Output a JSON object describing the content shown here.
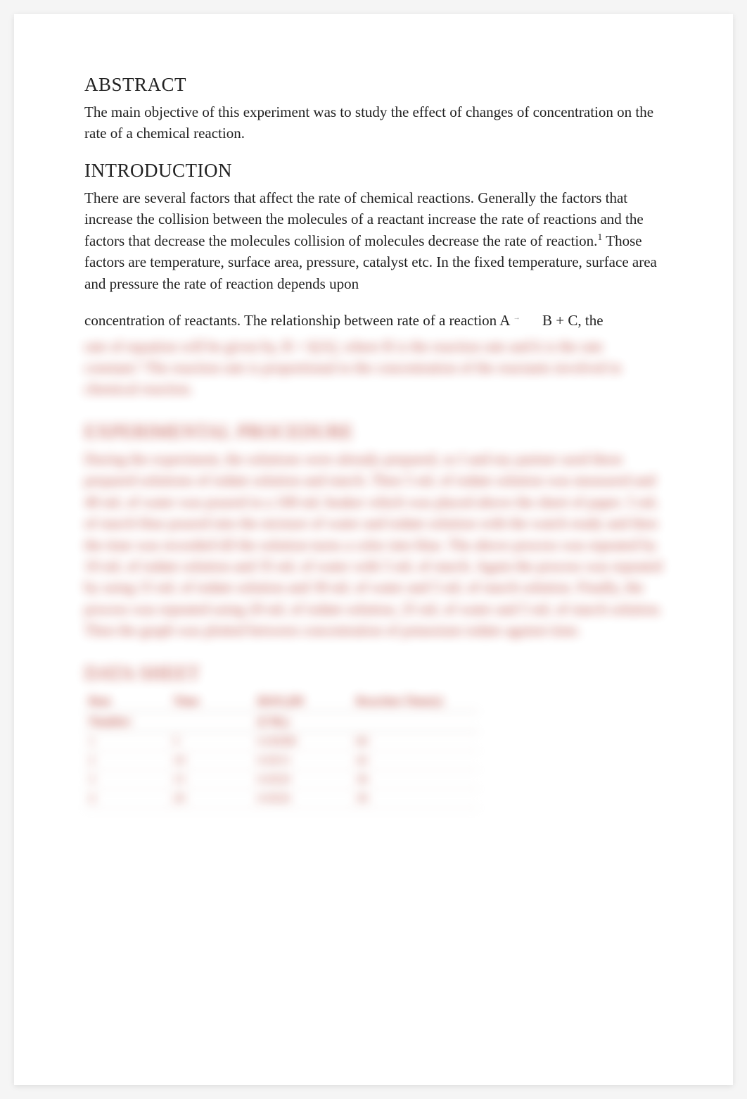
{
  "sections": {
    "abstract": {
      "heading": "ABSTRACT",
      "body": "The main objective of this experiment was to study the effect of changes of concentration on the rate of a chemical reaction."
    },
    "introduction": {
      "heading": "INTRODUCTION",
      "body_part1": "There are several factors that affect the rate of chemical reactions. Generally the factors that increase the collision between the molecules of a reactant increase the rate of reactions and the factors that decrease the molecules collision of molecules decrease the rate of reaction.",
      "superscript1": "1",
      "body_part2": " Those factors are temperature, surface area, pressure, catalyst etc. In the fixed temperature, surface area and pressure the rate of reaction depends upon",
      "equation_line_pre": "concentration of reactants. The relationship between rate of a reaction A",
      "equation_line_post": "B + C, the"
    },
    "blurred": {
      "continuation": "rate of equation will be given by, R = k[A], where R is the reaction rate and k is the rate constant.² The reaction rate is proportional to the concentration of the reactants involved in chemical reaction.",
      "proc_heading": "EXPERIMENTAL PROCEDURE",
      "proc_body": "During the experiment, the solutions were already prepared, so I and my partner used these prepared solutions of iodate solution and starch. Then 5 mL of iodate solution was measured and 40 mL of water was poured in a 100 mL beaker which was placed above the sheet of paper. 5 mL of starch blue poured into the mixture of water and iodate solution with the watch ready and then the time was recorded till the solution turns a color into blue. The above process was repeated by 10 mL of iodate solution and 35 mL of water with 5 mL of starch. Again the process was repeated by using 15 mL of iodate solution and 30 mL of water and 5 mL of starch solution. Finally, the process was repeated using 20 mL of iodate solution, 25 mL of water and 5 mL of starch solution. Then the graph was plotted between concentration of potassium iodate against time.",
      "data_heading": "DATA SHEET",
      "table": {
        "headers": [
          "Run",
          "Time",
          "[KIO₃]M",
          "Reaction Time(s)"
        ],
        "subheader_row": [
          "Number",
          "",
          "(CMₒ)",
          ""
        ],
        "rows": [
          [
            "1",
            "5",
            "0.00088",
            "60"
          ],
          [
            "2",
            "10",
            "0.0015",
            "42"
          ],
          [
            "3",
            "15",
            "0.0020",
            "36"
          ],
          [
            "4",
            "20",
            "0.0026",
            "30"
          ]
        ]
      }
    }
  },
  "colors": {
    "page_bg": "#ffffff",
    "body_bg": "#f5f5f5",
    "text": "#222222",
    "blurred_text": "#b8453a"
  },
  "typography": {
    "heading_fontsize": 27,
    "body_fontsize": 21,
    "line_height": 1.45,
    "font_family": "Times New Roman"
  }
}
